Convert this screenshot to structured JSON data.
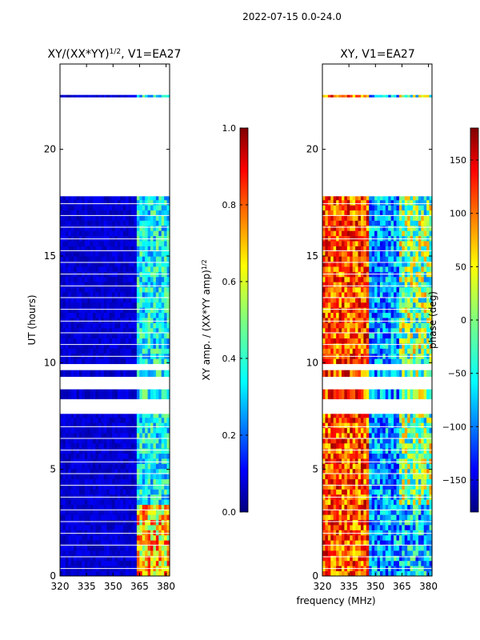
{
  "figure": {
    "suptitle": "2022-07-15 0.0-24.0",
    "shared_xlabel": "frequency (MHz)"
  },
  "colors": {
    "jet": [
      "#00007f",
      "#0000ff",
      "#007fff",
      "#00ffff",
      "#7fff7f",
      "#ffff00",
      "#ff7f00",
      "#ff0000",
      "#7f0000"
    ],
    "gap": "#ffffff",
    "axis": "#000000"
  },
  "chart_data": [
    {
      "type": "heatmap",
      "title_main": "XY/(XX*YY)",
      "title_exp": "1/2",
      "title_rest": ", V1=EA27",
      "xlabel": "",
      "ylabel": "UT (hours)",
      "xlim": [
        320,
        382
      ],
      "ylim": [
        0,
        24
      ],
      "xticks": [
        320,
        335,
        350,
        365,
        380
      ],
      "yticks": [
        0,
        5,
        10,
        15,
        20
      ],
      "colorbar": {
        "label_main": "XY amp. / (XX*YY amp)",
        "label_exp": "1/2",
        "range": [
          0.0,
          1.0
        ],
        "ticks": [
          "0.0",
          "0.2",
          "0.4",
          "0.6",
          "0.8",
          "1.0"
        ],
        "tick_values": [
          0,
          0.2,
          0.4,
          0.6,
          0.8,
          1.0
        ]
      },
      "data_bands_hours": [
        [
          0.0,
          3.35
        ],
        [
          3.35,
          7.6
        ],
        [
          8.3,
          8.75
        ],
        [
          9.35,
          9.65
        ],
        [
          9.95,
          17.8
        ],
        [
          22.45,
          22.55
        ]
      ],
      "band_description": "low amplitude (~0.05) across 320-382 MHz; elevated amplitude (~0.3-0.6) near 362-382 MHz, highest (~0.7-0.9) below 3.3 h"
    },
    {
      "type": "heatmap",
      "title_main": "XY, V1=EA27",
      "title_exp": "",
      "title_rest": "",
      "xlabel": "frequency (MHz)",
      "ylabel": "",
      "xlim": [
        320,
        382
      ],
      "ylim": [
        0,
        24
      ],
      "xticks": [
        320,
        335,
        350,
        365,
        380
      ],
      "yticks": [
        0,
        5,
        10,
        15,
        20
      ],
      "colorbar": {
        "label_main": "phase (deg)",
        "label_exp": "",
        "range": [
          -180,
          180
        ],
        "ticks": [
          "−150",
          "−100",
          "−50",
          "0",
          "50",
          "100",
          "150"
        ],
        "tick_values": [
          -150,
          -100,
          -50,
          0,
          50,
          100,
          150
        ]
      },
      "data_bands_hours": [
        [
          0.0,
          3.35
        ],
        [
          3.35,
          7.6
        ],
        [
          8.3,
          8.75
        ],
        [
          9.35,
          9.65
        ],
        [
          9.95,
          17.8
        ],
        [
          22.45,
          22.55
        ]
      ],
      "band_description": "phase (deg) varying smoothly with frequency and time; red/yellow (~+100 to +180) near 320-345 MHz, blue (~-150) near 350-380 MHz"
    }
  ]
}
